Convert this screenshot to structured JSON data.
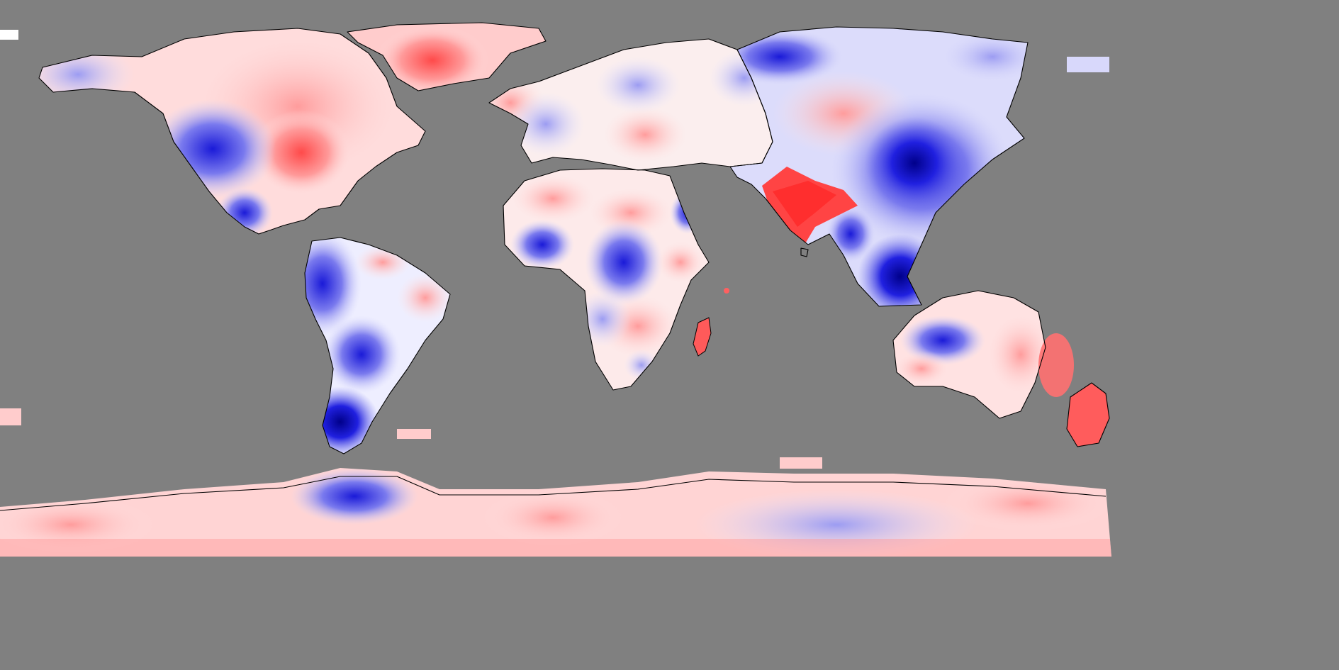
{
  "map": {
    "projection": "equirectangular",
    "background_color": "#808080",
    "coastline_color": "#000000",
    "color_scale": {
      "low": "#0000e0",
      "mid": "#ffffff",
      "high": "#ff3030",
      "no_data": "#808080"
    },
    "regions": [
      {
        "id": "north-america",
        "pattern": "mixed"
      },
      {
        "id": "greenland",
        "pattern": "warm"
      },
      {
        "id": "south-america",
        "pattern": "mostly-cool"
      },
      {
        "id": "europe",
        "pattern": "mixed"
      },
      {
        "id": "africa",
        "pattern": "mixed"
      },
      {
        "id": "asia",
        "pattern": "cool"
      },
      {
        "id": "india",
        "pattern": "warm"
      },
      {
        "id": "madagascar",
        "pattern": "warm"
      },
      {
        "id": "australia",
        "pattern": "mixed"
      },
      {
        "id": "new-zealand",
        "pattern": "warm"
      },
      {
        "id": "antarctica",
        "pattern": "mostly-warm"
      }
    ]
  }
}
